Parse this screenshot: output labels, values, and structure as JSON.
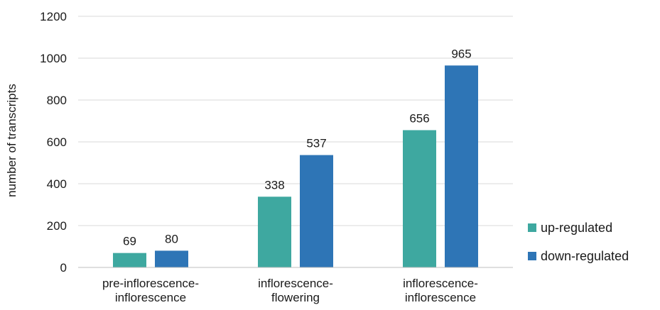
{
  "chart_data": {
    "type": "bar",
    "title": "",
    "xlabel": "",
    "ylabel": "number of transcripts",
    "ylim": [
      0,
      1200
    ],
    "yticks": [
      0,
      200,
      400,
      600,
      800,
      1000,
      1200
    ],
    "grid": true,
    "legend_position": "right",
    "categories": [
      [
        "pre-inflorescence-",
        "inflorescence"
      ],
      [
        "inflorescence-",
        "flowering"
      ],
      [
        "inflorescence-",
        "inflorescence"
      ]
    ],
    "series": [
      {
        "name": "up-regulated",
        "color": "#3ea8a0",
        "values": [
          69,
          338,
          656
        ]
      },
      {
        "name": "down-regulated",
        "color": "#2e75b6",
        "values": [
          80,
          537,
          965
        ]
      }
    ],
    "data_labels": true
  }
}
